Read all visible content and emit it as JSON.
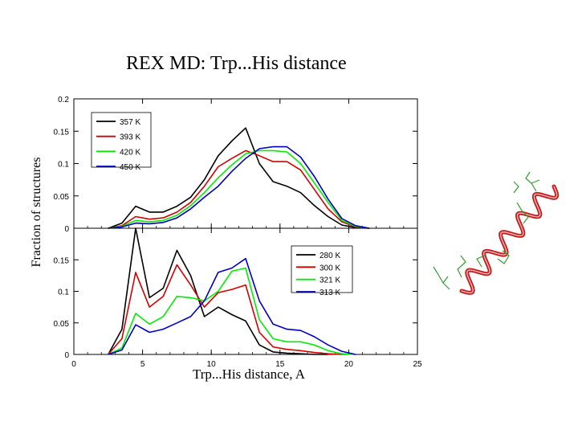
{
  "slide": {
    "title": "REX MD: Trp...His distance"
  },
  "chart_data": [
    {
      "type": "line",
      "panel": "top",
      "title": "",
      "xlabel": "Trp...His distance, A",
      "ylabel": "Fraction of structures",
      "xlim": [
        0,
        25
      ],
      "ylim": [
        0,
        0.2
      ],
      "xticks": [
        0,
        5,
        10,
        15,
        20,
        25
      ],
      "yticks": [
        "0",
        "0.05",
        "0.1",
        "0.15",
        "0.2"
      ],
      "legend_position": "top-left",
      "series": [
        {
          "name": "357 K",
          "color": "#000000",
          "points": [
            [
              2.5,
              0
            ],
            [
              3.5,
              0.008
            ],
            [
              4.5,
              0.034
            ],
            [
              5.5,
              0.025
            ],
            [
              6.5,
              0.025
            ],
            [
              7.5,
              0.034
            ],
            [
              8.5,
              0.048
            ],
            [
              9.5,
              0.075
            ],
            [
              10.5,
              0.112
            ],
            [
              11.5,
              0.135
            ],
            [
              12.5,
              0.155
            ],
            [
              13.5,
              0.1
            ],
            [
              14.5,
              0.072
            ],
            [
              15.5,
              0.065
            ],
            [
              16.5,
              0.055
            ],
            [
              17.5,
              0.035
            ],
            [
              18.5,
              0.018
            ],
            [
              19.5,
              0.005
            ],
            [
              20.5,
              0.001
            ],
            [
              21.5,
              0
            ]
          ]
        },
        {
          "name": "393 K",
          "color": "#d40000",
          "points": [
            [
              2.5,
              0
            ],
            [
              3.5,
              0.004
            ],
            [
              4.5,
              0.018
            ],
            [
              5.5,
              0.014
            ],
            [
              6.5,
              0.016
            ],
            [
              7.5,
              0.025
            ],
            [
              8.5,
              0.04
            ],
            [
              9.5,
              0.065
            ],
            [
              10.5,
              0.095
            ],
            [
              11.5,
              0.108
            ],
            [
              12.5,
              0.12
            ],
            [
              13.5,
              0.112
            ],
            [
              14.5,
              0.103
            ],
            [
              15.5,
              0.103
            ],
            [
              16.5,
              0.09
            ],
            [
              17.5,
              0.06
            ],
            [
              18.5,
              0.03
            ],
            [
              19.5,
              0.01
            ],
            [
              20.5,
              0.002
            ],
            [
              21.5,
              0
            ]
          ]
        },
        {
          "name": "420 K",
          "color": "#00ee00",
          "points": [
            [
              2.5,
              0
            ],
            [
              3.5,
              0.003
            ],
            [
              4.5,
              0.012
            ],
            [
              5.5,
              0.01
            ],
            [
              6.5,
              0.012
            ],
            [
              7.5,
              0.02
            ],
            [
              8.5,
              0.035
            ],
            [
              9.5,
              0.055
            ],
            [
              10.5,
              0.078
            ],
            [
              11.5,
              0.098
            ],
            [
              12.5,
              0.115
            ],
            [
              13.5,
              0.12
            ],
            [
              14.5,
              0.12
            ],
            [
              15.5,
              0.118
            ],
            [
              16.5,
              0.1
            ],
            [
              17.5,
              0.07
            ],
            [
              18.5,
              0.04
            ],
            [
              19.5,
              0.012
            ],
            [
              20.5,
              0.003
            ],
            [
              21.5,
              0
            ]
          ]
        },
        {
          "name": "450 K",
          "color": "#0000c0",
          "points": [
            [
              2.5,
              0
            ],
            [
              3.5,
              0.002
            ],
            [
              4.5,
              0.008
            ],
            [
              5.5,
              0.007
            ],
            [
              6.5,
              0.009
            ],
            [
              7.5,
              0.016
            ],
            [
              8.5,
              0.03
            ],
            [
              9.5,
              0.048
            ],
            [
              10.5,
              0.065
            ],
            [
              11.5,
              0.088
            ],
            [
              12.5,
              0.108
            ],
            [
              13.5,
              0.123
            ],
            [
              14.5,
              0.126
            ],
            [
              15.5,
              0.126
            ],
            [
              16.5,
              0.11
            ],
            [
              17.5,
              0.08
            ],
            [
              18.5,
              0.045
            ],
            [
              19.5,
              0.015
            ],
            [
              20.5,
              0.004
            ],
            [
              21.5,
              0
            ]
          ]
        }
      ]
    },
    {
      "type": "line",
      "panel": "bottom",
      "title": "",
      "xlabel": "Trp...His distance, A",
      "ylabel": "Fraction of structures",
      "xlim": [
        0,
        25
      ],
      "ylim": [
        0,
        0.2
      ],
      "xticks": [
        0,
        5,
        10,
        15,
        20,
        25
      ],
      "yticks": [
        "0",
        "0.05",
        "0.1",
        "0.15"
      ],
      "legend_position": "top-right",
      "series": [
        {
          "name": "280 K",
          "color": "#000000",
          "points": [
            [
              2.5,
              0
            ],
            [
              3.5,
              0.04
            ],
            [
              4.5,
              0.2
            ],
            [
              5.5,
              0.09
            ],
            [
              6.5,
              0.105
            ],
            [
              7.5,
              0.165
            ],
            [
              8.5,
              0.125
            ],
            [
              9.5,
              0.06
            ],
            [
              10.5,
              0.075
            ],
            [
              11.5,
              0.063
            ],
            [
              12.5,
              0.053
            ],
            [
              13.5,
              0.015
            ],
            [
              14.5,
              0.004
            ],
            [
              15.5,
              0.002
            ],
            [
              16.5,
              0.001
            ],
            [
              17.5,
              0
            ],
            [
              18.5,
              0
            ]
          ]
        },
        {
          "name": "300 K",
          "color": "#d40000",
          "points": [
            [
              2.5,
              0
            ],
            [
              3.5,
              0.025
            ],
            [
              4.5,
              0.13
            ],
            [
              5.5,
              0.075
            ],
            [
              6.5,
              0.092
            ],
            [
              7.5,
              0.142
            ],
            [
              8.5,
              0.11
            ],
            [
              9.5,
              0.075
            ],
            [
              10.5,
              0.098
            ],
            [
              11.5,
              0.103
            ],
            [
              12.5,
              0.11
            ],
            [
              13.5,
              0.035
            ],
            [
              14.5,
              0.012
            ],
            [
              15.5,
              0.008
            ],
            [
              16.5,
              0.006
            ],
            [
              17.5,
              0.003
            ],
            [
              18.5,
              0.001
            ],
            [
              19.5,
              0
            ]
          ]
        },
        {
          "name": "321 K",
          "color": "#00ee00",
          "points": [
            [
              2.5,
              0
            ],
            [
              3.5,
              0.01
            ],
            [
              4.5,
              0.065
            ],
            [
              5.5,
              0.048
            ],
            [
              6.5,
              0.06
            ],
            [
              7.5,
              0.092
            ],
            [
              8.5,
              0.09
            ],
            [
              9.5,
              0.085
            ],
            [
              10.5,
              0.1
            ],
            [
              11.5,
              0.132
            ],
            [
              12.5,
              0.137
            ],
            [
              13.5,
              0.055
            ],
            [
              14.5,
              0.025
            ],
            [
              15.5,
              0.02
            ],
            [
              16.5,
              0.02
            ],
            [
              17.5,
              0.015
            ],
            [
              18.5,
              0.006
            ],
            [
              19.5,
              0.001
            ],
            [
              20.5,
              0
            ]
          ]
        },
        {
          "name": "313 K",
          "color": "#0000c0",
          "points": [
            [
              2.5,
              0
            ],
            [
              3.5,
              0.007
            ],
            [
              4.5,
              0.047
            ],
            [
              5.5,
              0.035
            ],
            [
              6.5,
              0.04
            ],
            [
              7.5,
              0.05
            ],
            [
              8.5,
              0.06
            ],
            [
              9.5,
              0.085
            ],
            [
              10.5,
              0.13
            ],
            [
              11.5,
              0.137
            ],
            [
              12.5,
              0.152
            ],
            [
              13.5,
              0.085
            ],
            [
              14.5,
              0.048
            ],
            [
              15.5,
              0.04
            ],
            [
              16.5,
              0.038
            ],
            [
              17.5,
              0.028
            ],
            [
              18.5,
              0.015
            ],
            [
              19.5,
              0.005
            ],
            [
              20.5,
              0
            ]
          ]
        }
      ]
    }
  ],
  "image_description_colors": {
    "helix": "#c41a1a",
    "side_chains": "#2e9e2e"
  }
}
